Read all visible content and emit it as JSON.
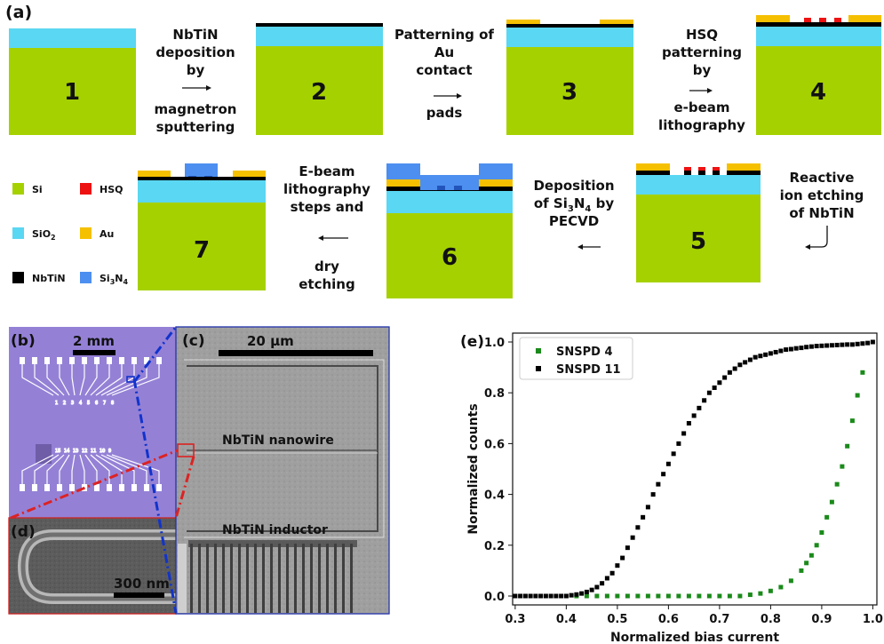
{
  "panel_labels": {
    "a": "(a)",
    "b": "(b)",
    "c": "(c)",
    "d": "(d)",
    "e": "(e)"
  },
  "colors": {
    "si": "#a6d100",
    "sio2": "#5ad7f2",
    "nbtin": "#000000",
    "au": "#f5c000",
    "hsq": "#ee1111",
    "si3n4": "#4d8ff0"
  },
  "process": {
    "step_numbers": [
      "1",
      "2",
      "3",
      "4",
      "5",
      "6",
      "7"
    ],
    "step1_text": [
      "NbTiN",
      "deposition",
      "by",
      "magnetron",
      "sputtering"
    ],
    "step2_text": [
      "Patterning of",
      "Au",
      "contact",
      "pads"
    ],
    "step3_text": [
      "HSQ",
      "patterning",
      "by",
      "e-beam",
      "lithography"
    ],
    "step4_text": [
      "Reactive",
      "ion etching",
      "of NbTiN"
    ],
    "step5_text": {
      "line1": "Deposition",
      "line2_pre": "of Si",
      "sub3": "3",
      "mid": "N",
      "sub4": "4",
      "line2_post": " by",
      "line3": "PECVD"
    },
    "step6_text": [
      "E-beam",
      "lithography",
      "steps and",
      "dry",
      "etching"
    ]
  },
  "legend": {
    "si": "Si",
    "hsq": "HSQ",
    "sio2_base": "SiO",
    "sio2_sub": "2",
    "au": "Au",
    "nbtin": "NbTiN",
    "si3n4_base": "Si",
    "si3n4_sub1": "3",
    "si3n4_mid": "N",
    "si3n4_sub2": "4"
  },
  "microscopy": {
    "b_scale": "2 mm",
    "c_scale": "20 µm",
    "c_label_nanowire": "NbTiN nanowire",
    "c_label_inductor": "NbTiN inductor",
    "d_scale": "300 nm",
    "chip_pad_numbers": [
      "1",
      "2",
      "3",
      "4",
      "5",
      "6",
      "7",
      "8"
    ],
    "chip_pad_numbers_bottom": [
      "15",
      "14",
      "13",
      "12",
      "11",
      "10",
      "9"
    ]
  },
  "chart_data": {
    "type": "scatter",
    "xlabel": "Normalized bias current",
    "ylabel": "Normalized counts",
    "xlim": [
      0.3,
      1.0
    ],
    "ylim": [
      0.0,
      1.0
    ],
    "xticks": [
      "0.3",
      "0.4",
      "0.5",
      "0.6",
      "0.7",
      "0.8",
      "0.9",
      "1.0"
    ],
    "yticks": [
      "0.0",
      "0.2",
      "0.4",
      "0.6",
      "0.8",
      "1.0"
    ],
    "legend_position": "top-left",
    "series": [
      {
        "name": "SNSPD 4",
        "color": "#1a8a1a",
        "x": [
          0.42,
          0.44,
          0.46,
          0.48,
          0.5,
          0.52,
          0.54,
          0.56,
          0.58,
          0.6,
          0.62,
          0.64,
          0.66,
          0.68,
          0.7,
          0.72,
          0.74,
          0.76,
          0.78,
          0.8,
          0.82,
          0.84,
          0.86,
          0.87,
          0.88,
          0.89,
          0.9,
          0.91,
          0.92,
          0.93,
          0.94,
          0.95,
          0.96,
          0.97,
          0.98
        ],
        "y": [
          0.0,
          0.0,
          0.0,
          0.0,
          0.0,
          0.0,
          0.0,
          0.0,
          0.0,
          0.0,
          0.0,
          0.0,
          0.0,
          0.0,
          0.0,
          0.0,
          0.0,
          0.005,
          0.01,
          0.02,
          0.035,
          0.06,
          0.1,
          0.13,
          0.16,
          0.2,
          0.25,
          0.31,
          0.37,
          0.44,
          0.51,
          0.59,
          0.69,
          0.79,
          0.88
        ]
      },
      {
        "name": "SNSPD 11",
        "color": "#000000",
        "x": [
          0.3,
          0.31,
          0.32,
          0.33,
          0.34,
          0.35,
          0.36,
          0.37,
          0.38,
          0.39,
          0.4,
          0.41,
          0.42,
          0.43,
          0.44,
          0.45,
          0.46,
          0.47,
          0.48,
          0.49,
          0.5,
          0.51,
          0.52,
          0.53,
          0.54,
          0.55,
          0.56,
          0.57,
          0.58,
          0.59,
          0.6,
          0.61,
          0.62,
          0.63,
          0.64,
          0.65,
          0.66,
          0.67,
          0.68,
          0.69,
          0.7,
          0.71,
          0.72,
          0.73,
          0.74,
          0.75,
          0.76,
          0.77,
          0.78,
          0.79,
          0.8,
          0.81,
          0.82,
          0.83,
          0.84,
          0.85,
          0.86,
          0.87,
          0.88,
          0.89,
          0.9,
          0.91,
          0.92,
          0.93,
          0.94,
          0.95,
          0.96,
          0.97,
          0.98,
          0.99,
          1.0
        ],
        "y": [
          0.0,
          0.0,
          0.0,
          0.0,
          0.0,
          0.0,
          0.0,
          0.0,
          0.0,
          0.0,
          0.0,
          0.003,
          0.006,
          0.01,
          0.016,
          0.024,
          0.035,
          0.05,
          0.07,
          0.09,
          0.12,
          0.15,
          0.19,
          0.23,
          0.27,
          0.31,
          0.35,
          0.4,
          0.44,
          0.48,
          0.52,
          0.56,
          0.6,
          0.64,
          0.68,
          0.71,
          0.74,
          0.77,
          0.8,
          0.82,
          0.84,
          0.86,
          0.88,
          0.895,
          0.91,
          0.92,
          0.93,
          0.94,
          0.945,
          0.95,
          0.955,
          0.96,
          0.965,
          0.97,
          0.972,
          0.975,
          0.977,
          0.98,
          0.982,
          0.984,
          0.985,
          0.986,
          0.987,
          0.988,
          0.989,
          0.99,
          0.99,
          0.992,
          0.994,
          0.996,
          1.0
        ]
      }
    ]
  }
}
